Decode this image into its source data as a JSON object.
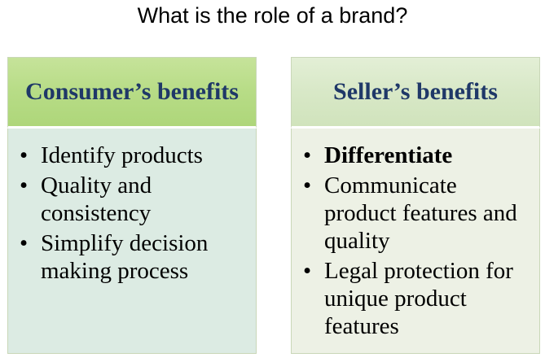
{
  "title": "What is the role of a brand?",
  "panels": [
    {
      "header": "Consumer’s benefits",
      "items": [
        {
          "text": "Identify products",
          "bold": false
        },
        {
          "text": "Quality and consistency",
          "bold": false
        },
        {
          "text": "Simplify decision making process",
          "bold": false
        }
      ]
    },
    {
      "header": "Seller’s benefits",
      "items": [
        {
          "text": "Differentiate",
          "bold": true
        },
        {
          "text": "Communicate product features and quality",
          "bold": false
        },
        {
          "text": "Legal protection for unique product features",
          "bold": false
        }
      ]
    }
  ],
  "bullet": "•"
}
